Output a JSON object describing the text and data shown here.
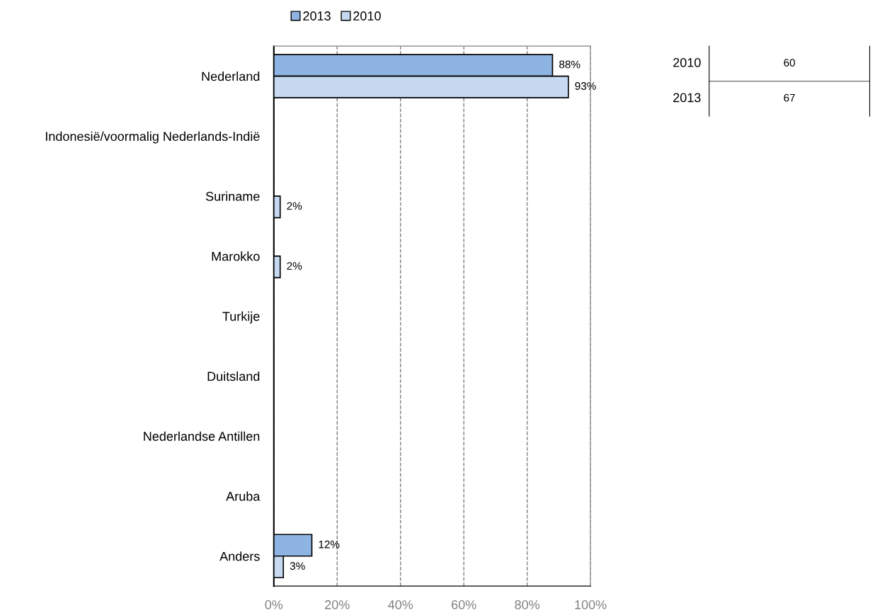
{
  "chart_data": {
    "type": "bar",
    "orientation": "horizontal",
    "categories": [
      "Nederland",
      "Indonesië/voormalig Nederlands-Indië",
      "Suriname",
      "Marokko",
      "Turkije",
      "Duitsland",
      "Nederlandse Antillen",
      "Aruba",
      "Anders"
    ],
    "series": [
      {
        "name": "2013",
        "color": "#8eb4e3",
        "values": [
          88,
          null,
          null,
          null,
          null,
          null,
          null,
          null,
          12
        ],
        "value_labels": [
          "88%",
          null,
          null,
          null,
          null,
          null,
          null,
          null,
          "12%"
        ]
      },
      {
        "name": "2010",
        "color": "#c6d9f1",
        "values": [
          93,
          null,
          2,
          2,
          null,
          null,
          null,
          null,
          3
        ],
        "value_labels": [
          "93%",
          null,
          "2%",
          "2%",
          null,
          null,
          null,
          null,
          "3%"
        ]
      }
    ],
    "xlim": [
      0,
      100
    ],
    "xticks": [
      {
        "value": 0,
        "label": "0%"
      },
      {
        "value": 20,
        "label": "20%"
      },
      {
        "value": 40,
        "label": "40%"
      },
      {
        "value": 60,
        "label": "60%"
      },
      {
        "value": 80,
        "label": "80%"
      },
      {
        "value": 100,
        "label": "100%"
      }
    ],
    "grid": "x",
    "legend": "top left",
    "annotations": [
      "2010",
      "60",
      "2013",
      "67"
    ]
  }
}
